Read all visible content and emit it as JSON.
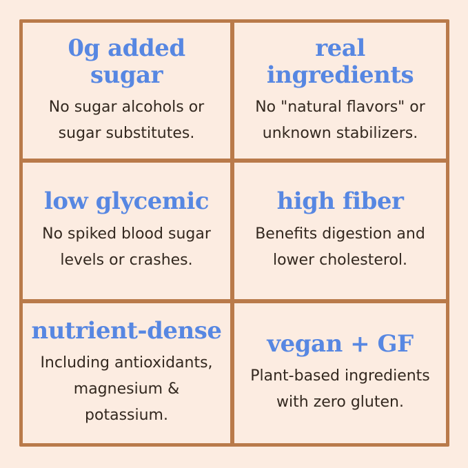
{
  "colors": {
    "background": "#fcece1",
    "grid_border": "#b97a4a",
    "heading_blue": "#5787e2",
    "body_text": "#33281f"
  },
  "cells": [
    {
      "id": "zero-added-sugar",
      "title": "0g added sugar",
      "line1": "No sugar alcohols or",
      "line2": "sugar substitutes."
    },
    {
      "id": "real-ingredients",
      "title": "real ingredients",
      "line1": "No \"natural flavors\" or",
      "line2": "unknown stabilizers."
    },
    {
      "id": "low-glycemic",
      "title": "low glycemic",
      "line1": "No spiked blood sugar",
      "line2": "levels or crashes."
    },
    {
      "id": "high-fiber",
      "title": "high fiber",
      "line1": "Benefits digestion and",
      "line2": "lower cholesterol."
    },
    {
      "id": "nutrient-dense",
      "title": "nutrient-dense",
      "line1": "Including antioxidants,",
      "line2": "magnesium & potassium."
    },
    {
      "id": "vegan-gf",
      "title": "vegan + GF",
      "line1": "Plant-based ingredients",
      "line2": "with zero gluten."
    }
  ]
}
